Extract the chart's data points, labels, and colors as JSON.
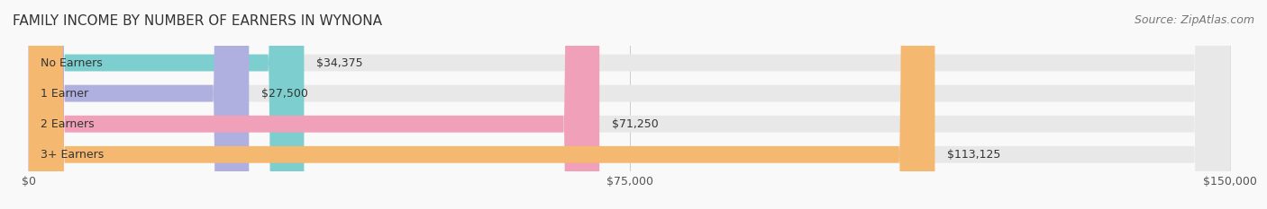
{
  "title": "FAMILY INCOME BY NUMBER OF EARNERS IN WYNONA",
  "source": "Source: ZipAtlas.com",
  "categories": [
    "No Earners",
    "1 Earner",
    "2 Earners",
    "3+ Earners"
  ],
  "values": [
    34375,
    27500,
    71250,
    113125
  ],
  "bar_colors": [
    "#7dcfcf",
    "#b0b0e0",
    "#f0a0b8",
    "#f5b870"
  ],
  "bar_bg_color": "#eeeeee",
  "max_value": 150000,
  "xlabel_ticks": [
    0,
    75000,
    150000
  ],
  "xlabel_labels": [
    "$0",
    "$75,000",
    "$150,000"
  ],
  "value_labels": [
    "$34,375",
    "$27,500",
    "$71,250",
    "$113,125"
  ],
  "title_fontsize": 11,
  "source_fontsize": 9,
  "label_fontsize": 9,
  "value_fontsize": 9,
  "tick_fontsize": 9,
  "bg_color": "#f9f9f9",
  "bar_height": 0.55,
  "bar_label_color_outside": "#555555",
  "bar_label_color_inside": "#ffffff"
}
